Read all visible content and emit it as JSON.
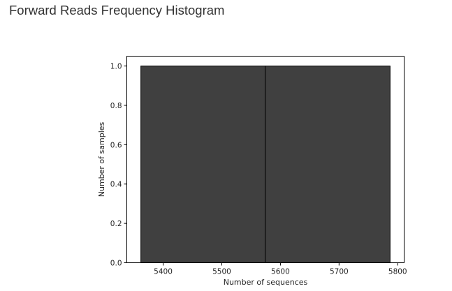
{
  "page": {
    "title": "Forward Reads Frequency Histogram"
  },
  "chart_data": {
    "type": "bar",
    "title": "",
    "xlabel": "Number of sequences",
    "ylabel": "Number of samples",
    "bins": [
      {
        "start": 5362,
        "end": 5574,
        "count": 1.0
      },
      {
        "start": 5574,
        "end": 5787,
        "count": 1.0
      }
    ],
    "xlim": [
      5338,
      5811
    ],
    "ylim": [
      0.0,
      1.05
    ],
    "xticks": [
      5400,
      5500,
      5600,
      5700,
      5800
    ],
    "xtick_labels": [
      "5400",
      "5500",
      "5600",
      "5700",
      "5800"
    ],
    "yticks": [
      0.0,
      0.2,
      0.4,
      0.6,
      0.8,
      1.0
    ],
    "ytick_labels": [
      "0.0",
      "0.2",
      "0.4",
      "0.6",
      "0.8",
      "1.0"
    ],
    "bar_color": "#404040",
    "edge_color": "#000000",
    "grid": false,
    "legend": "none"
  }
}
